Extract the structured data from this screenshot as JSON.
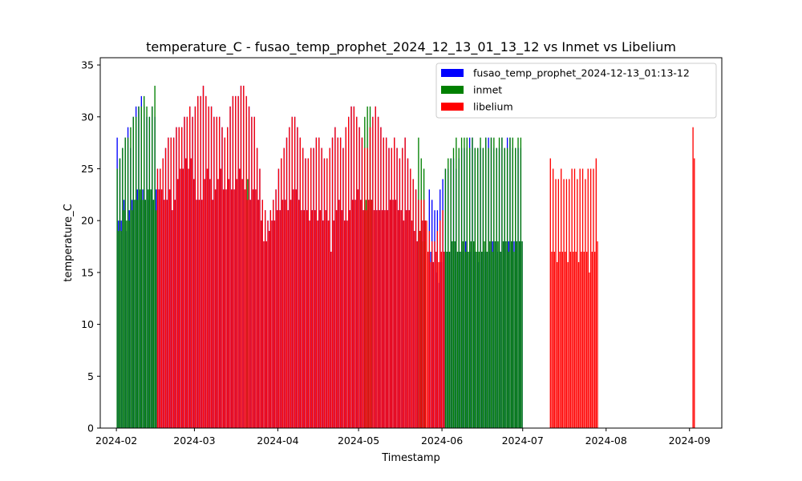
{
  "chart_data": {
    "type": "bar",
    "title": "temperature_C - fusao_temp_prophet_2024_12_13_01_13_12 vs Inmet vs Libelium",
    "xlabel": "Timestamp",
    "ylabel": "temperature_C",
    "xlim": [
      "2024-01-26",
      "2024-09-13"
    ],
    "ylim": [
      0,
      35.7
    ],
    "x_ticks": [
      "2024-02",
      "2024-03",
      "2024-04",
      "2024-05",
      "2024-06",
      "2024-07",
      "2024-08",
      "2024-09"
    ],
    "y_ticks": [
      0,
      5,
      10,
      15,
      20,
      25,
      30,
      35
    ],
    "grid": false,
    "legend_position": "upper right",
    "series": [
      {
        "name": "fusao_temp_prophet_2024-12-13_01:13-12",
        "color": "#0000ff",
        "segments": [
          {
            "start": "2024-02-01",
            "end": "2024-02-15",
            "max_values": [
              28,
              26,
              27,
              28,
              29,
              27,
              30,
              31,
              31,
              32,
              31,
              30,
              30,
              31,
              30
            ],
            "min_values": [
              20,
              20,
              22,
              19,
              21,
              22,
              22,
              23,
              22,
              23,
              22,
              22,
              23,
              22,
              23
            ]
          },
          {
            "start": "2024-02-16",
            "end": "2024-05-25",
            "max_values": [
              25,
              25,
              26,
              27,
              28,
              28,
              28,
              29,
              29,
              29,
              30,
              30,
              31,
              30,
              31,
              32,
              32,
              33,
              32,
              31,
              31,
              30,
              30,
              30,
              29,
              28,
              29,
              31,
              32,
              32,
              32,
              33,
              33,
              32,
              31,
              30,
              30,
              27,
              25,
              22,
              21,
              20,
              21,
              22,
              23,
              25,
              26,
              27,
              28,
              29,
              30,
              30,
              29,
              28,
              27,
              26,
              26,
              27,
              27,
              28,
              28,
              27,
              26,
              26,
              27,
              28,
              29,
              28,
              28,
              27,
              29,
              30,
              31,
              31,
              30,
              29,
              28,
              27,
              27,
              29,
              30,
              31,
              30,
              29,
              28,
              28,
              27,
              27,
              28,
              27,
              26,
              27,
              28,
              26,
              25,
              24,
              23,
              22,
              22,
              22
            ],
            "min_values": [
              23,
              23,
              22,
              22,
              23,
              21,
              22,
              24,
              25,
              25,
              26,
              25,
              26,
              24,
              22,
              22,
              22,
              24,
              25,
              24,
              22,
              23,
              24,
              25,
              23,
              23,
              24,
              23,
              23,
              24,
              25,
              24,
              23,
              22,
              22,
              23,
              23,
              22,
              20,
              18,
              18,
              19,
              20,
              20,
              21,
              21,
              22,
              22,
              21,
              22,
              23,
              23,
              22,
              21,
              21,
              21,
              20,
              21,
              21,
              20,
              21,
              20,
              21,
              20,
              17,
              20,
              21,
              22,
              21,
              20,
              20,
              21,
              22,
              22,
              23,
              22,
              21,
              21,
              22,
              22,
              21,
              21,
              21,
              21,
              21,
              21,
              22,
              22,
              22,
              21,
              21,
              20,
              21,
              21,
              20,
              19,
              18,
              19,
              20,
              20
            ]
          },
          {
            "start": "2024-05-27",
            "end": "2024-06-30",
            "max_values": [
              23,
              22,
              21,
              21,
              23,
              24,
              25,
              25,
              26,
              26,
              25,
              26,
              27,
              27,
              27,
              28,
              28,
              27,
              27,
              27,
              27,
              28,
              28,
              28,
              27,
              27,
              27,
              28,
              27,
              28,
              28,
              27,
              27,
              27,
              27
            ],
            "min_values": [
              17,
              16,
              15,
              14,
              16,
              17,
              17,
              17,
              18,
              18,
              17,
              17,
              17,
              18,
              17,
              17,
              17,
              17,
              16,
              17,
              17,
              17,
              17,
              18,
              18,
              17,
              17,
              18,
              18,
              18,
              18,
              18,
              18,
              18,
              18
            ]
          }
        ]
      },
      {
        "name": "inmet",
        "color": "#008000",
        "segments": [
          {
            "start": "2024-02-01",
            "end": "2024-02-15",
            "max_values": [
              25,
              26,
              27,
              28,
              28,
              29,
              30,
              30,
              31,
              31,
              32,
              31,
              30,
              31,
              33
            ],
            "min_values": [
              19,
              19,
              21,
              20,
              20,
              21,
              22,
              22,
              23,
              22,
              22,
              23,
              23,
              22,
              21
            ]
          },
          {
            "start": "2024-03-20",
            "end": "2024-03-20",
            "max_values": [
              30
            ],
            "min_values": [
              24
            ]
          },
          {
            "start": "2024-05-03",
            "end": "2024-05-05",
            "max_values": [
              30,
              31,
              31
            ],
            "min_values": [
              22,
              21,
              22
            ]
          },
          {
            "start": "2024-05-23",
            "end": "2024-05-25",
            "max_values": [
              28,
              26,
              25
            ],
            "min_values": [
              19,
              18,
              18
            ]
          },
          {
            "start": "2024-06-02",
            "end": "2024-06-30",
            "max_values": [
              25,
              26,
              26,
              27,
              28,
              27,
              28,
              28,
              28,
              27,
              28,
              27,
              27,
              28,
              27,
              28,
              27,
              28,
              28,
              27,
              28,
              28,
              27,
              27,
              28,
              28,
              27,
              28,
              28
            ],
            "min_values": [
              17,
              17,
              18,
              18,
              17,
              17,
              18,
              17,
              17,
              18,
              18,
              17,
              17,
              17,
              18,
              17,
              18,
              17,
              18,
              18,
              17,
              18,
              18,
              17,
              18,
              17,
              18,
              18,
              18
            ]
          }
        ]
      },
      {
        "name": "libelium",
        "color": "#ff0000",
        "segments": [
          {
            "start": "2024-02-16",
            "end": "2024-06-01",
            "max_values": [
              25,
              25,
              26,
              27,
              28,
              28,
              28,
              29,
              29,
              29,
              30,
              30,
              31,
              30,
              31,
              32,
              32,
              33,
              32,
              31,
              31,
              30,
              30,
              30,
              29,
              28,
              29,
              31,
              32,
              32,
              32,
              33,
              33,
              32,
              31,
              30,
              30,
              27,
              25,
              22,
              21,
              20,
              21,
              22,
              23,
              25,
              26,
              27,
              28,
              29,
              30,
              30,
              29,
              28,
              27,
              26,
              26,
              27,
              27,
              28,
              28,
              27,
              26,
              26,
              27,
              28,
              29,
              28,
              28,
              27,
              29,
              30,
              31,
              31,
              30,
              29,
              28,
              27,
              27,
              29,
              30,
              31,
              30,
              29,
              28,
              28,
              27,
              27,
              28,
              27,
              26,
              27,
              28,
              26,
              25,
              24,
              23,
              22,
              22,
              22,
              20,
              19,
              18,
              18,
              19,
              20,
              21
            ],
            "min_values": [
              23,
              23,
              22,
              22,
              23,
              21,
              22,
              24,
              25,
              25,
              26,
              25,
              26,
              24,
              22,
              22,
              22,
              24,
              25,
              24,
              22,
              23,
              24,
              25,
              23,
              23,
              24,
              23,
              23,
              24,
              25,
              24,
              23,
              22,
              22,
              23,
              23,
              22,
              20,
              18,
              18,
              19,
              20,
              20,
              21,
              21,
              22,
              22,
              21,
              22,
              23,
              23,
              22,
              21,
              21,
              21,
              20,
              21,
              21,
              20,
              21,
              20,
              21,
              20,
              17,
              20,
              21,
              22,
              21,
              20,
              20,
              21,
              22,
              22,
              23,
              22,
              21,
              21,
              22,
              22,
              21,
              21,
              21,
              21,
              21,
              21,
              22,
              22,
              22,
              21,
              21,
              20,
              21,
              21,
              20,
              19,
              18,
              19,
              20,
              20,
              17,
              16,
              16,
              17,
              16,
              17,
              17
            ]
          },
          {
            "start": "2024-07-11",
            "end": "2024-07-28",
            "max_values": [
              26,
              25,
              24,
              24,
              25,
              24,
              24,
              24,
              25,
              25,
              24,
              25,
              25,
              24,
              25,
              25,
              25,
              26
            ],
            "min_values": [
              17,
              17,
              16,
              17,
              17,
              17,
              16,
              17,
              17,
              17,
              16,
              17,
              17,
              17,
              15,
              17,
              17,
              18
            ]
          },
          {
            "start": "2024-09-02",
            "end": "2024-09-02",
            "max_values": [
              29
            ],
            "min_values": [
              26
            ]
          }
        ]
      }
    ]
  }
}
